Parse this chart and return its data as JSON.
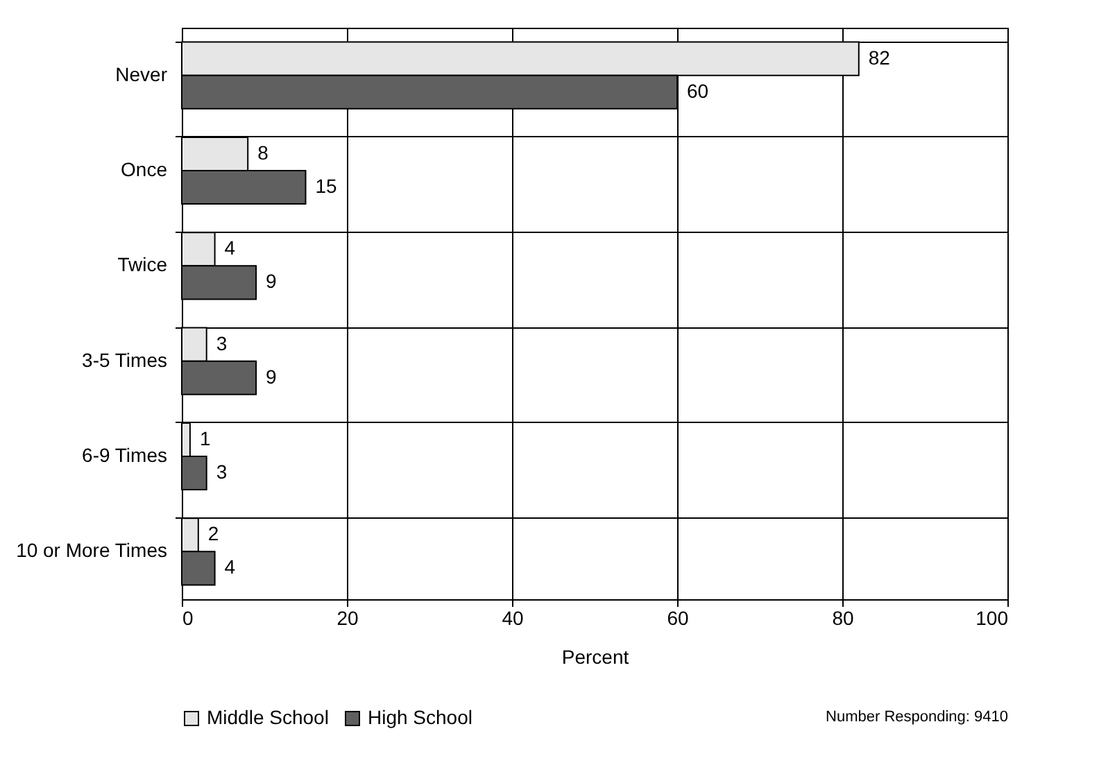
{
  "chart_data": {
    "type": "bar",
    "orientation": "horizontal",
    "xlabel": "Percent",
    "categories": [
      "Never",
      "Once",
      "Twice",
      "3-5 Times",
      "6-9 Times",
      "10 or More Times"
    ],
    "series": [
      {
        "name": "Middle School",
        "color": "#e6e6e6",
        "values": [
          82,
          8,
          4,
          3,
          1,
          2
        ]
      },
      {
        "name": "High School",
        "color": "#606060",
        "values": [
          60,
          15,
          9,
          9,
          3,
          4
        ]
      }
    ],
    "xlim": [
      0,
      100
    ],
    "xticks": [
      0,
      20,
      40,
      60,
      80,
      100
    ],
    "grid": true,
    "legend": "bottom",
    "data_labels": true,
    "annotations": [
      "Number Responding: 9410"
    ]
  }
}
